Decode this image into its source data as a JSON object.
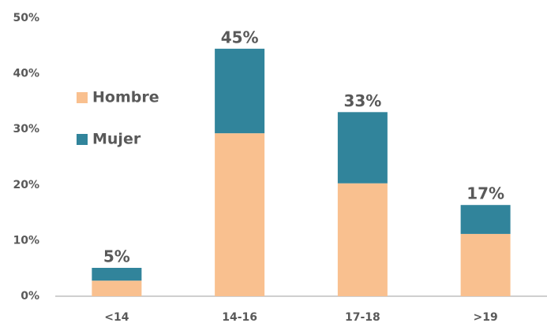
{
  "chart_data": {
    "type": "bar",
    "stacked": true,
    "categories": [
      "<14",
      "14-16",
      "17-18",
      ">19"
    ],
    "series": [
      {
        "name": "Hombre",
        "color": "#f9c08f",
        "values": [
          2.8,
          29.3,
          20.3,
          11.2
        ]
      },
      {
        "name": "Mujer",
        "color": "#31849b",
        "values": [
          2.3,
          15.2,
          12.8,
          5.2
        ]
      }
    ],
    "total_labels": [
      "5%",
      "45%",
      "33%",
      "17%"
    ],
    "ylim": [
      0,
      50
    ],
    "yticks": [
      {
        "value": 0,
        "label": "0%"
      },
      {
        "value": 10,
        "label": "10%"
      },
      {
        "value": 20,
        "label": "20%"
      },
      {
        "value": 30,
        "label": "30%"
      },
      {
        "value": 40,
        "label": "40%"
      },
      {
        "value": 50,
        "label": "50%"
      }
    ],
    "grid": false,
    "legend": "upper left"
  }
}
